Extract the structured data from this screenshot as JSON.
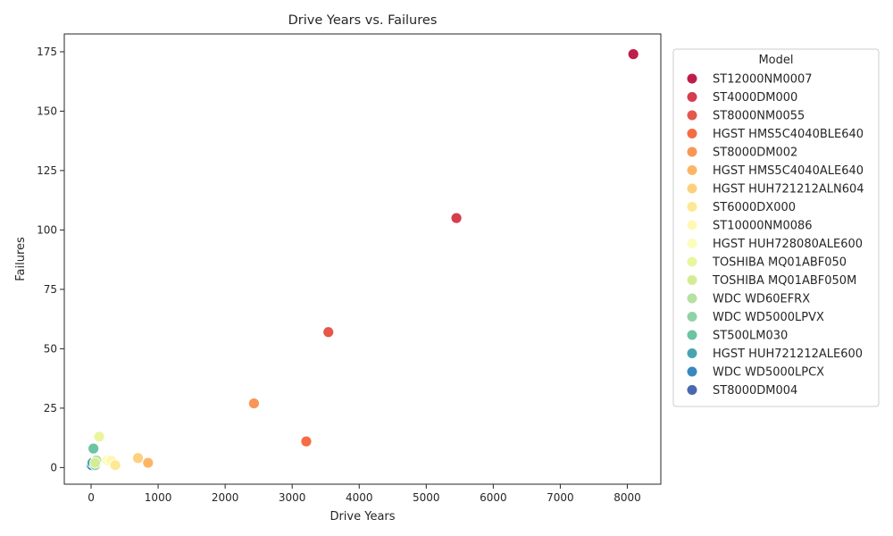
{
  "chart_data": {
    "type": "scatter",
    "title": "Drive Years vs. Failures",
    "xlabel": "Drive Years",
    "ylabel": "Failures",
    "xlim": [
      -400,
      8500
    ],
    "ylim": [
      -7,
      182.5
    ],
    "xticks": [
      0,
      1000,
      2000,
      3000,
      4000,
      5000,
      6000,
      7000,
      8000
    ],
    "yticks": [
      0,
      25,
      50,
      75,
      100,
      125,
      150,
      175
    ],
    "grid": false,
    "legend_title": "Model",
    "legend_position": "outside-right",
    "series": [
      {
        "name": "ST12000NM0007",
        "color": "#be1e4a",
        "points": [
          [
            8090,
            174
          ]
        ]
      },
      {
        "name": "ST4000DM000",
        "color": "#d53e4f",
        "points": [
          [
            5450,
            105
          ]
        ]
      },
      {
        "name": "ST8000NM0055",
        "color": "#e55749",
        "points": [
          [
            3540,
            57
          ]
        ]
      },
      {
        "name": "HGST HMS5C4040BLE640",
        "color": "#f46d43",
        "points": [
          [
            3210,
            11
          ]
        ]
      },
      {
        "name": "ST8000DM002",
        "color": "#f99655",
        "points": [
          [
            2430,
            27
          ]
        ]
      },
      {
        "name": "HGST HMS5C4040ALE640",
        "color": "#fdb567",
        "points": [
          [
            850,
            2
          ]
        ]
      },
      {
        "name": "HGST HUH721212ALN604",
        "color": "#fdd07f",
        "points": [
          [
            700,
            4
          ]
        ]
      },
      {
        "name": "ST6000DX000",
        "color": "#fee893",
        "points": [
          [
            360,
            1
          ]
        ]
      },
      {
        "name": "ST10000NM0086",
        "color": "#fff8b4",
        "points": [
          [
            300,
            3
          ]
        ]
      },
      {
        "name": "HGST HUH728080ALE600",
        "color": "#fbfdbc",
        "points": [
          [
            240,
            3
          ]
        ]
      },
      {
        "name": "TOSHIBA MQ01ABF050",
        "color": "#e9f69d",
        "points": [
          [
            120,
            13
          ]
        ]
      },
      {
        "name": "TOSHIBA MQ01ABF050M",
        "color": "#d4ed94",
        "points": [
          [
            60,
            2
          ]
        ]
      },
      {
        "name": "WDC WD60EFRX",
        "color": "#b5e1a1",
        "points": [
          [
            80,
            3
          ]
        ]
      },
      {
        "name": "WDC WD5000LPVX",
        "color": "#90d3a4",
        "points": [
          [
            60,
            1
          ]
        ]
      },
      {
        "name": "ST500LM030",
        "color": "#6cc4a4",
        "points": [
          [
            35,
            8
          ]
        ]
      },
      {
        "name": "HGST HUH721212ALE600",
        "color": "#47a5b0",
        "points": [
          [
            20,
            2
          ]
        ]
      },
      {
        "name": "WDC WD5000LPCX",
        "color": "#3b88bd",
        "points": [
          [
            10,
            1
          ]
        ]
      },
      {
        "name": "ST8000DM004",
        "color": "#4a68b0",
        "points": [
          [
            3,
            1
          ]
        ]
      }
    ]
  }
}
